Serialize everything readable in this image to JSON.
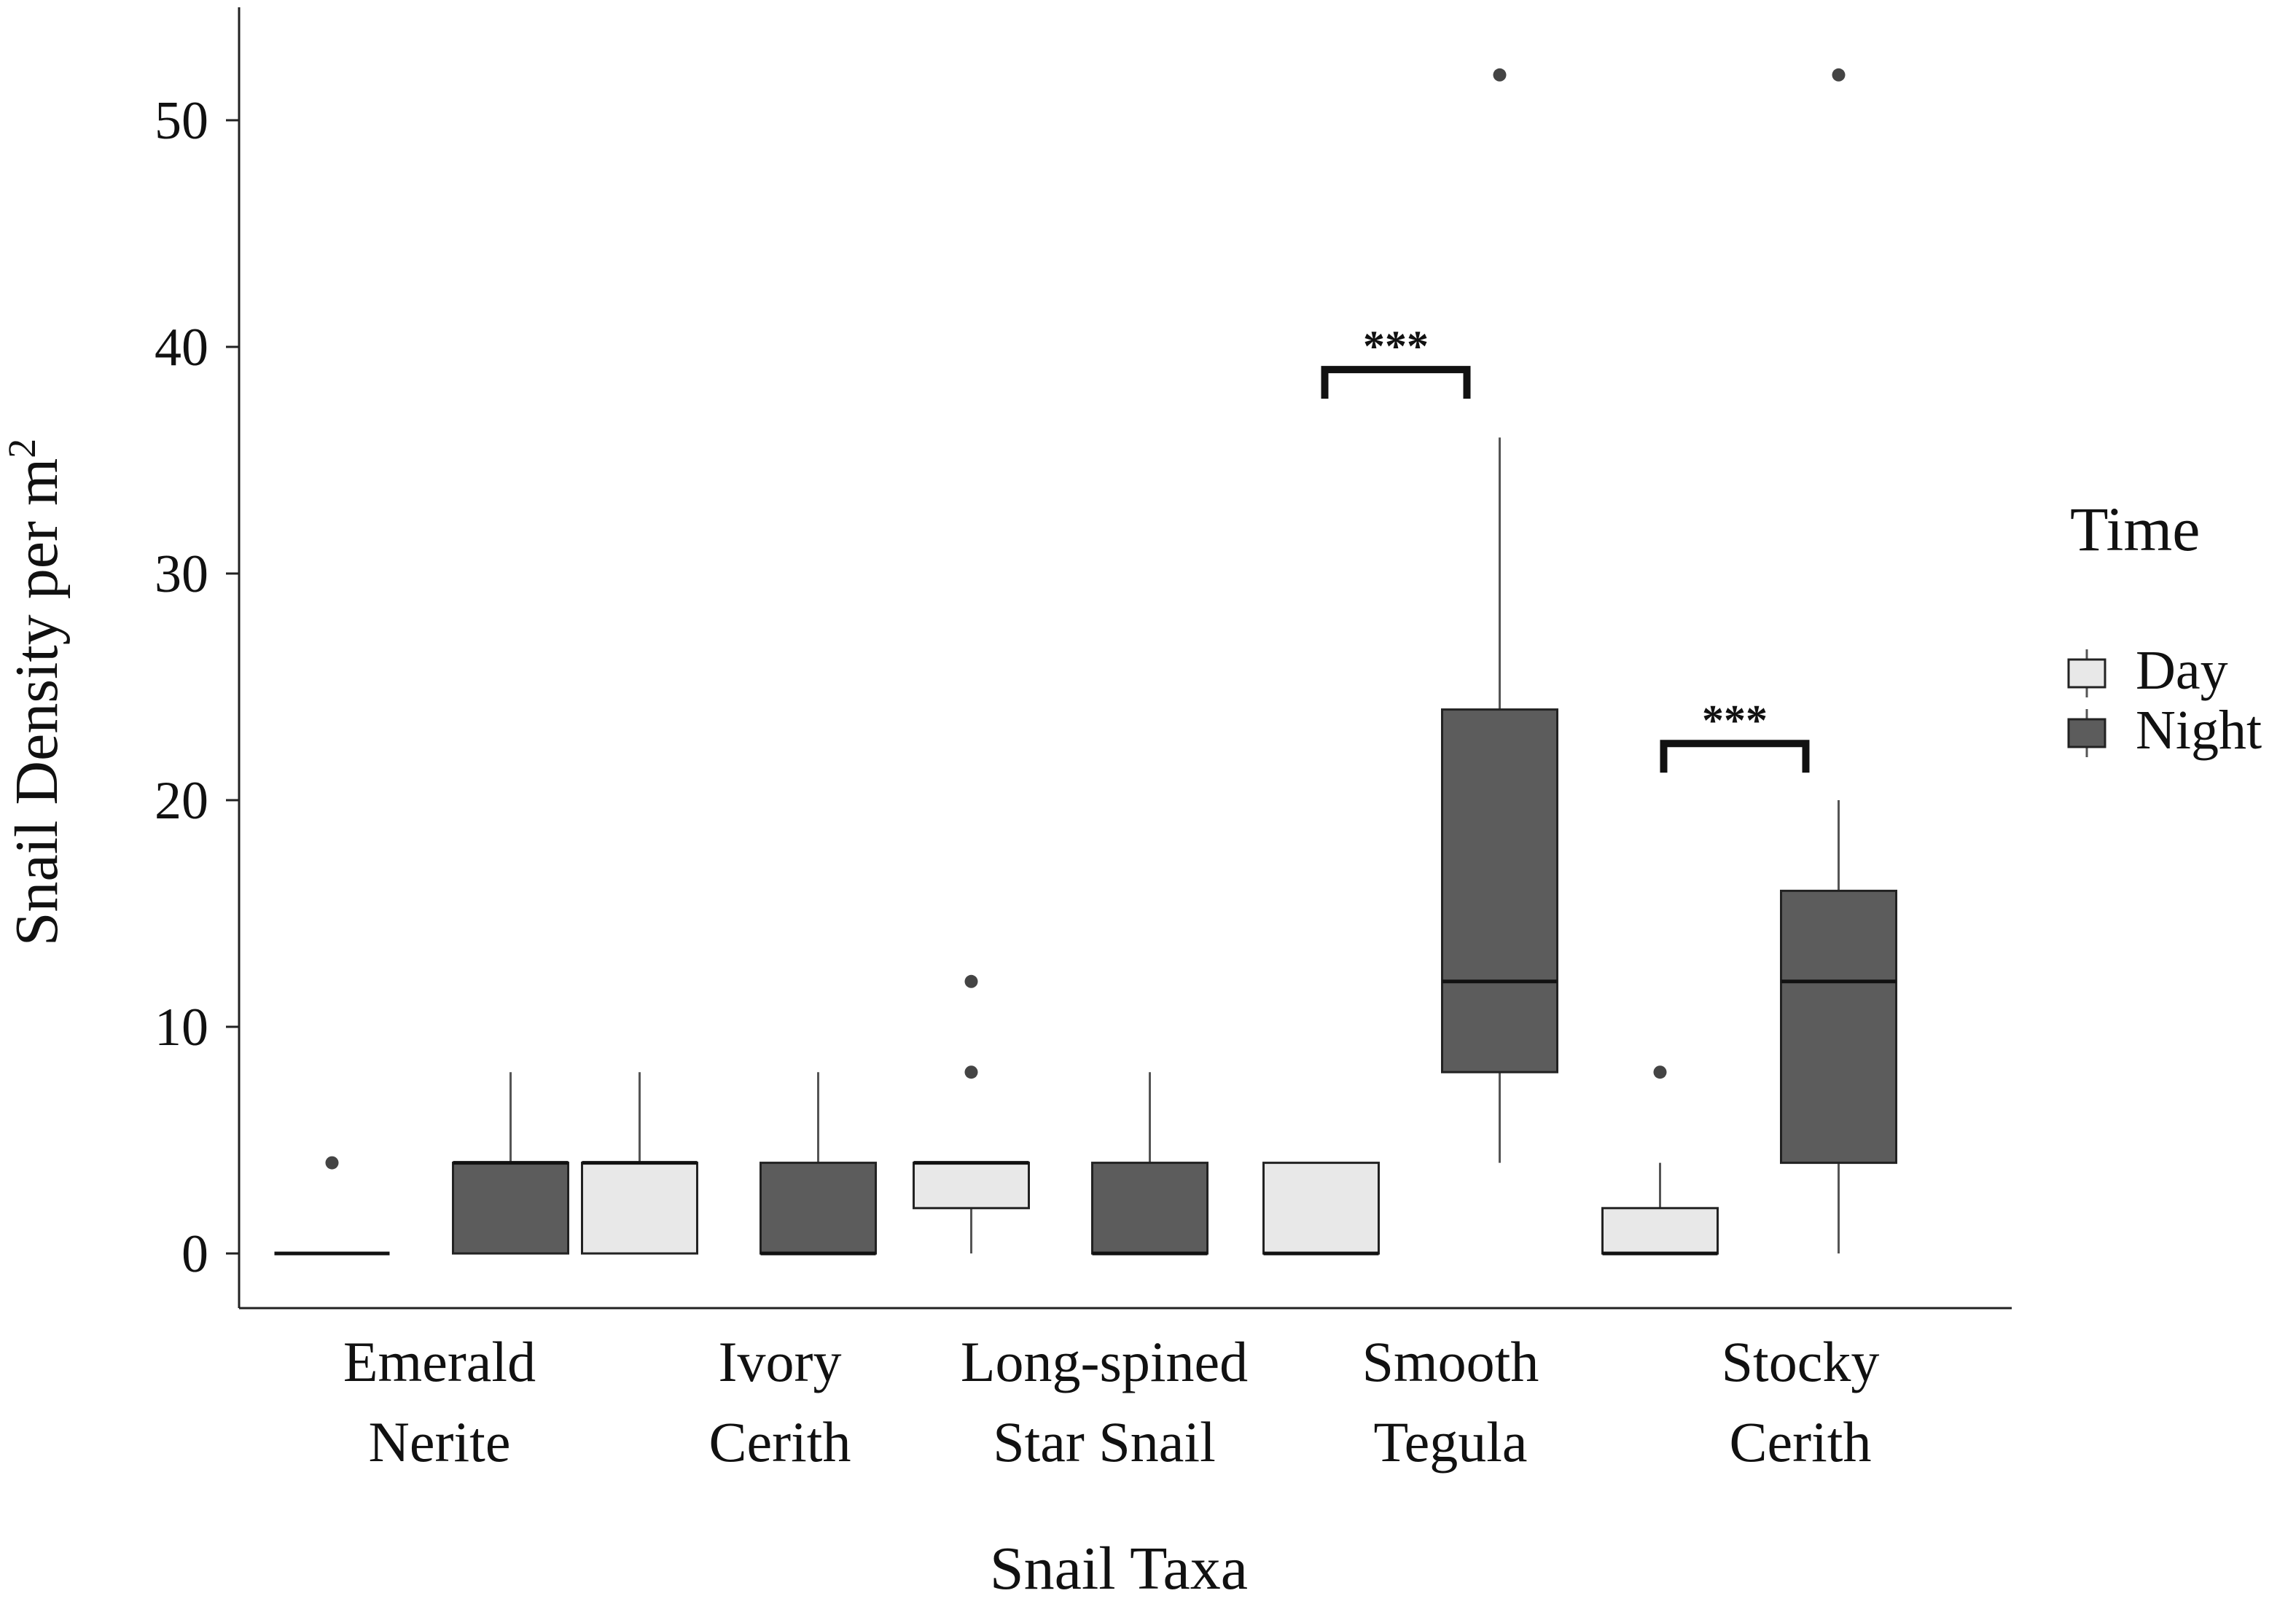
{
  "chart_data": {
    "type": "boxplot",
    "title": "",
    "xlabel": "Snail Taxa",
    "ylabel": "Snail Density per m",
    "ylabel_superscript": "2",
    "ylim": [
      -2,
      55
    ],
    "yticks": [
      0,
      10,
      20,
      30,
      40,
      50
    ],
    "categories": [
      [
        "Emerald",
        "Nerite"
      ],
      [
        "Ivory",
        "Cerith"
      ],
      [
        "Long-spined",
        "Star Snail"
      ],
      [
        "Smooth",
        "Tegula"
      ],
      [
        "Stocky",
        "Cerith"
      ]
    ],
    "legend": {
      "title": "Time",
      "position": "right",
      "entries": [
        "Day",
        "Night"
      ]
    },
    "colors": {
      "Day": "#e8e8e8",
      "Night": "#5c5c5c",
      "outline": "#222222",
      "whisker": "#555555",
      "outlier": "#444444"
    },
    "series": [
      {
        "name": "Day",
        "boxes": [
          {
            "min": 0,
            "q1": 0,
            "median": 0,
            "q3": 0,
            "max": 0,
            "outliers": [
              4
            ]
          },
          {
            "min": 0,
            "q1": 0,
            "median": 4,
            "q3": 4,
            "max": 8,
            "outliers": []
          },
          {
            "min": 0,
            "q1": 2,
            "median": 4,
            "q3": 4,
            "max": 4,
            "outliers": [
              8,
              12
            ]
          },
          {
            "min": 0,
            "q1": 0,
            "median": 0,
            "q3": 4,
            "max": 4,
            "outliers": []
          },
          {
            "min": 0,
            "q1": 0,
            "median": 0,
            "q3": 2,
            "max": 4,
            "outliers": [
              8
            ]
          }
        ]
      },
      {
        "name": "Night",
        "boxes": [
          {
            "min": 0,
            "q1": 0,
            "median": 4,
            "q3": 4,
            "max": 8,
            "outliers": []
          },
          {
            "min": 0,
            "q1": 0,
            "median": 0,
            "q3": 4,
            "max": 8,
            "outliers": []
          },
          {
            "min": 0,
            "q1": 0,
            "median": 0,
            "q3": 4,
            "max": 8,
            "outliers": []
          },
          {
            "min": 4,
            "q1": 8,
            "median": 12,
            "q3": 24,
            "max": 36,
            "outliers": [
              52
            ]
          },
          {
            "min": 0,
            "q1": 4,
            "median": 12,
            "q3": 16,
            "max": 20,
            "outliers": [
              52
            ]
          }
        ]
      }
    ],
    "significance": [
      {
        "category_index": 3,
        "label": "***",
        "y": 39
      },
      {
        "category_index": 4,
        "label": "***",
        "y": 22.5
      }
    ]
  }
}
